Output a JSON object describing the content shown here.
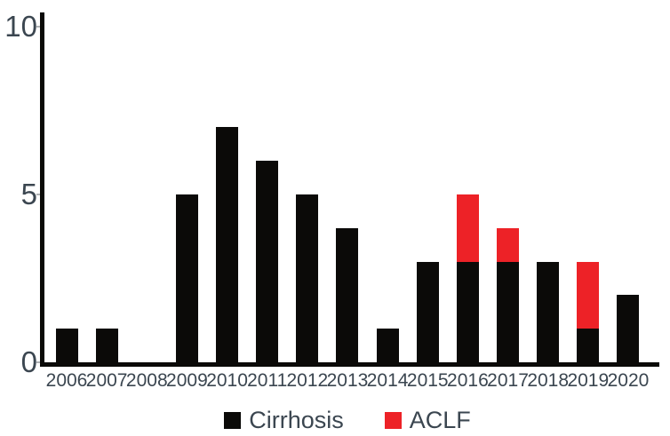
{
  "chart_data": {
    "type": "bar",
    "stacked": true,
    "categories": [
      "2006",
      "2007",
      "2008",
      "2009",
      "2010",
      "2011",
      "2012",
      "2013",
      "2014",
      "2015",
      "2016",
      "2017",
      "2018",
      "2019",
      "2020"
    ],
    "series": [
      {
        "name": "Cirrhosis",
        "color": "#0b0a08",
        "values": [
          1,
          1,
          0,
          5,
          7,
          6,
          5,
          4,
          1,
          3,
          3,
          3,
          3,
          1,
          2
        ]
      },
      {
        "name": "ACLF",
        "color": "#ed2227",
        "values": [
          0,
          0,
          0,
          0,
          0,
          0,
          0,
          0,
          0,
          0,
          2,
          1,
          0,
          2,
          0
        ]
      }
    ],
    "title": "",
    "xlabel": "",
    "ylabel": "",
    "ylim": [
      0,
      10
    ],
    "yticks": [
      0,
      5,
      10
    ],
    "grid": false,
    "legend_position": "bottom"
  },
  "legend": {
    "items": [
      {
        "label": "Cirrhosis",
        "color": "#0b0a08"
      },
      {
        "label": "ACLF",
        "color": "#ed2227"
      }
    ]
  },
  "colors": {
    "axis": "#0b0a08",
    "text": "#3b4650",
    "tick": "#b0b3b6",
    "background": "#ffffff"
  }
}
